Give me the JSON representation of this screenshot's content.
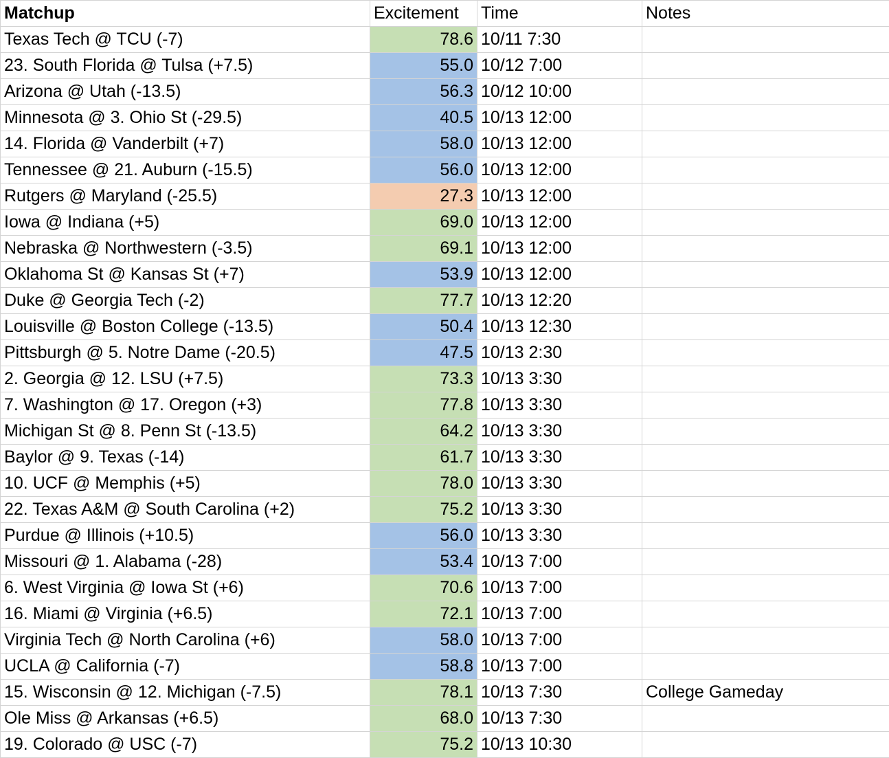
{
  "colors": {
    "high": "#c6dfb4",
    "mid": "#a4c2e6",
    "low": "#f4ccb0"
  },
  "headers": {
    "matchup": "Matchup",
    "excitement": "Excitement",
    "time": "Time",
    "notes": "Notes"
  },
  "rows": [
    {
      "matchup": "Texas Tech @ TCU (-7)",
      "excitement": "78.6",
      "level": "high",
      "time": "10/11 7:30",
      "notes": ""
    },
    {
      "matchup": "23. South Florida @ Tulsa (+7.5)",
      "excitement": "55.0",
      "level": "mid",
      "time": "10/12 7:00",
      "notes": ""
    },
    {
      "matchup": "Arizona @ Utah (-13.5)",
      "excitement": "56.3",
      "level": "mid",
      "time": "10/12 10:00",
      "notes": ""
    },
    {
      "matchup": "Minnesota @ 3. Ohio St (-29.5)",
      "excitement": "40.5",
      "level": "mid",
      "time": "10/13 12:00",
      "notes": ""
    },
    {
      "matchup": "14. Florida @ Vanderbilt (+7)",
      "excitement": "58.0",
      "level": "mid",
      "time": "10/13 12:00",
      "notes": ""
    },
    {
      "matchup": "Tennessee @ 21. Auburn (-15.5)",
      "excitement": "56.0",
      "level": "mid",
      "time": "10/13 12:00",
      "notes": ""
    },
    {
      "matchup": "Rutgers @ Maryland (-25.5)",
      "excitement": "27.3",
      "level": "low",
      "time": "10/13 12:00",
      "notes": ""
    },
    {
      "matchup": "Iowa @ Indiana (+5)",
      "excitement": "69.0",
      "level": "high",
      "time": "10/13 12:00",
      "notes": ""
    },
    {
      "matchup": "Nebraska @ Northwestern (-3.5)",
      "excitement": "69.1",
      "level": "high",
      "time": "10/13 12:00",
      "notes": ""
    },
    {
      "matchup": "Oklahoma St @ Kansas St (+7)",
      "excitement": "53.9",
      "level": "mid",
      "time": "10/13 12:00",
      "notes": ""
    },
    {
      "matchup": "Duke @ Georgia Tech (-2)",
      "excitement": "77.7",
      "level": "high",
      "time": "10/13 12:20",
      "notes": ""
    },
    {
      "matchup": "Louisville @ Boston College (-13.5)",
      "excitement": "50.4",
      "level": "mid",
      "time": "10/13 12:30",
      "notes": ""
    },
    {
      "matchup": "Pittsburgh @ 5. Notre Dame (-20.5)",
      "excitement": "47.5",
      "level": "mid",
      "time": "10/13 2:30",
      "notes": ""
    },
    {
      "matchup": "2. Georgia @ 12. LSU (+7.5)",
      "excitement": "73.3",
      "level": "high",
      "time": "10/13 3:30",
      "notes": ""
    },
    {
      "matchup": "7. Washington @ 17. Oregon (+3)",
      "excitement": "77.8",
      "level": "high",
      "time": "10/13 3:30",
      "notes": ""
    },
    {
      "matchup": "Michigan St @ 8. Penn St (-13.5)",
      "excitement": "64.2",
      "level": "high",
      "time": "10/13 3:30",
      "notes": ""
    },
    {
      "matchup": "Baylor @ 9. Texas (-14)",
      "excitement": "61.7",
      "level": "high",
      "time": "10/13 3:30",
      "notes": ""
    },
    {
      "matchup": "10. UCF @ Memphis (+5)",
      "excitement": "78.0",
      "level": "high",
      "time": "10/13 3:30",
      "notes": ""
    },
    {
      "matchup": "22. Texas A&M @ South Carolina (+2)",
      "excitement": "75.2",
      "level": "high",
      "time": "10/13 3:30",
      "notes": ""
    },
    {
      "matchup": "Purdue @ Illinois (+10.5)",
      "excitement": "56.0",
      "level": "mid",
      "time": "10/13 3:30",
      "notes": ""
    },
    {
      "matchup": "Missouri @ 1. Alabama (-28)",
      "excitement": "53.4",
      "level": "mid",
      "time": "10/13 7:00",
      "notes": ""
    },
    {
      "matchup": "6. West Virginia @ Iowa St (+6)",
      "excitement": "70.6",
      "level": "high",
      "time": "10/13 7:00",
      "notes": ""
    },
    {
      "matchup": "16. Miami @ Virginia (+6.5)",
      "excitement": "72.1",
      "level": "high",
      "time": "10/13 7:00",
      "notes": ""
    },
    {
      "matchup": "Virginia Tech @ North Carolina (+6)",
      "excitement": "58.0",
      "level": "mid",
      "time": "10/13 7:00",
      "notes": ""
    },
    {
      "matchup": "UCLA @ California (-7)",
      "excitement": "58.8",
      "level": "mid",
      "time": "10/13 7:00",
      "notes": ""
    },
    {
      "matchup": "15. Wisconsin @ 12. Michigan (-7.5)",
      "excitement": "78.1",
      "level": "high",
      "time": "10/13 7:30",
      "notes": "College Gameday"
    },
    {
      "matchup": "Ole Miss @ Arkansas (+6.5)",
      "excitement": "68.0",
      "level": "high",
      "time": "10/13 7:30",
      "notes": ""
    },
    {
      "matchup": "19. Colorado @ USC (-7)",
      "excitement": "75.2",
      "level": "high",
      "time": "10/13 10:30",
      "notes": ""
    }
  ]
}
